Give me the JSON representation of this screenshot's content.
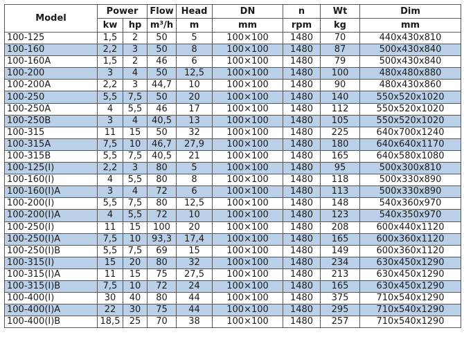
{
  "header": {
    "model": "Model",
    "power": "Power",
    "flow": "Flow",
    "head": "Head",
    "dn": "DN",
    "n": "n",
    "wt": "Wt",
    "dim": "Dim",
    "units": [
      "kw",
      "hp",
      "m³/h",
      "m",
      "mm",
      "rpm",
      "kg",
      "mm"
    ]
  },
  "colors": {
    "stripe": "#b9d0e8",
    "border": "#555555"
  },
  "rows": [
    [
      "100-125",
      "1,5",
      "2",
      "50",
      "5",
      "100×100",
      "1480",
      "70",
      "440x430x810"
    ],
    [
      "100-160",
      "2,2",
      "3",
      "50",
      "8",
      "100×100",
      "1480",
      "87",
      "500x430x840"
    ],
    [
      "100-160A",
      "1,5",
      "2",
      "46",
      "6",
      "100×100",
      "1480",
      "79",
      "500x430x840"
    ],
    [
      "100-200",
      "3",
      "4",
      "50",
      "12,5",
      "100×100",
      "1480",
      "100",
      "480x480x880"
    ],
    [
      "100-200A",
      "2,2",
      "3",
      "44,7",
      "10",
      "100×100",
      "1480",
      "90",
      "480x430x860"
    ],
    [
      "100-250",
      "5,5",
      "7,5",
      "50",
      "20",
      "100×100",
      "1480",
      "140",
      "550x520x1020"
    ],
    [
      "100-250A",
      "4",
      "5,5",
      "46",
      "17",
      "100×100",
      "1480",
      "112",
      "550x520x1020"
    ],
    [
      "100-250B",
      "3",
      "4",
      "40,5",
      "13",
      "100×100",
      "1480",
      "105",
      "550x520x1020"
    ],
    [
      "100-315",
      "11",
      "15",
      "50",
      "32",
      "100×100",
      "1480",
      "225",
      "640x700x1240"
    ],
    [
      "100-315A",
      "7,5",
      "10",
      "46,7",
      "27,9",
      "100×100",
      "1480",
      "180",
      "640x640x1170"
    ],
    [
      "100-315B",
      "5,5",
      "7,5",
      "40,5",
      "21",
      "100×100",
      "1480",
      "165",
      "640x580x1080"
    ],
    [
      "100-125(I)",
      "2,2",
      "3",
      "80",
      "5",
      "100×100",
      "1480",
      "95",
      "500x300x810"
    ],
    [
      "100-160(I)",
      "4",
      "5,5",
      "80",
      "8",
      "100×100",
      "1480",
      "118",
      "500x330x890"
    ],
    [
      "100-160(I)A",
      "3",
      "4",
      "72",
      "6",
      "100×100",
      "1480",
      "113",
      "500x330x890"
    ],
    [
      "100-200(I)",
      "5,5",
      "7,5",
      "80",
      "12,5",
      "100×100",
      "1480",
      "148",
      "540x360x970"
    ],
    [
      "100-200(I)A",
      "4",
      "5,5",
      "72",
      "10",
      "100×100",
      "1480",
      "123",
      "540x350x970"
    ],
    [
      "100-250(I)",
      "11",
      "15",
      "100",
      "20",
      "100×100",
      "1480",
      "208",
      "600x440x1120"
    ],
    [
      "100-250(I)A",
      "7,5",
      "10",
      "93,3",
      "17,4",
      "100×100",
      "1480",
      "165",
      "600x360x1120"
    ],
    [
      "100-250(I)B",
      "5,5",
      "7,5",
      "69",
      "15",
      "100×100",
      "1480",
      "149",
      "600x360x1120"
    ],
    [
      "100-315(I)",
      "15",
      "20",
      "80",
      "32",
      "100×100",
      "1480",
      "234",
      "630x450x1290"
    ],
    [
      "100-315(I)A",
      "11",
      "15",
      "75",
      "27,5",
      "100×100",
      "1480",
      "213",
      "630x450x1290"
    ],
    [
      "100-315(I)B",
      "7,5",
      "10",
      "72",
      "24",
      "100×100",
      "1480",
      "165",
      "630x450x1290"
    ],
    [
      "100-400(I)",
      "30",
      "40",
      "80",
      "44",
      "100×100",
      "1480",
      "375",
      "710x540x1290"
    ],
    [
      "100-400(I)A",
      "22",
      "30",
      "75",
      "44",
      "100×100",
      "1480",
      "295",
      "710x540x1290"
    ],
    [
      "100-400(I)B",
      "18,5",
      "25",
      "70",
      "38",
      "100×100",
      "1480",
      "257",
      "710x540x1290"
    ]
  ]
}
